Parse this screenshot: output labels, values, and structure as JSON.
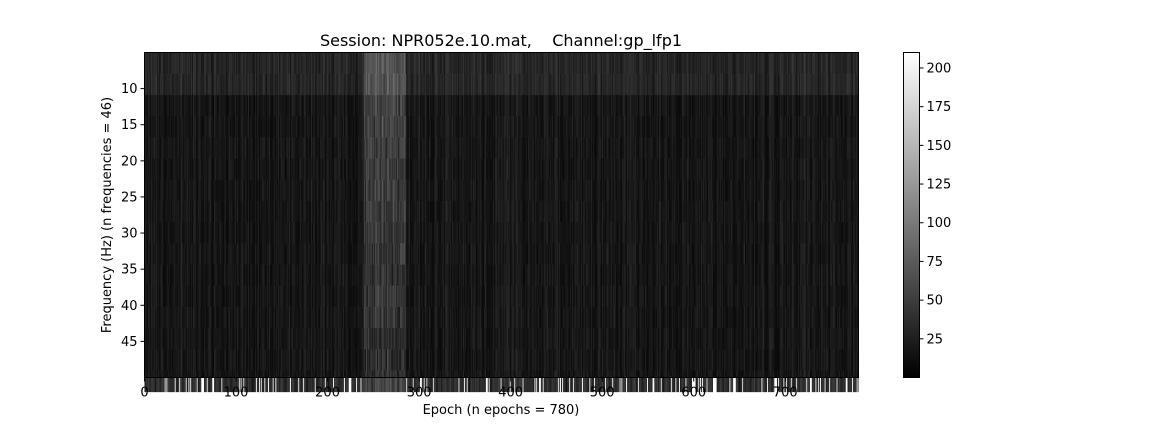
{
  "chart_data": {
    "type": "heatmap",
    "title": "Session: NPR052e.10.mat,    Channel:gp_lfp1",
    "xlabel": "Epoch (n epochs = 780)",
    "ylabel": "Frequency (Hz) (n frequencies = 46)",
    "x_range": [
      0,
      780
    ],
    "y_range": [
      5,
      50
    ],
    "y_inverted": true,
    "x_ticks": [
      0,
      100,
      200,
      300,
      400,
      500,
      600,
      700
    ],
    "y_ticks": [
      10,
      15,
      20,
      25,
      30,
      35,
      40,
      45
    ],
    "colormap": "gray",
    "colorbar": {
      "min": 0,
      "max": 210,
      "ticks": [
        25,
        50,
        75,
        100,
        125,
        150,
        175,
        200
      ]
    },
    "n_epochs": 780,
    "n_frequencies": 46,
    "high_power_epochs": [
      240,
      285
    ],
    "grid": false
  }
}
